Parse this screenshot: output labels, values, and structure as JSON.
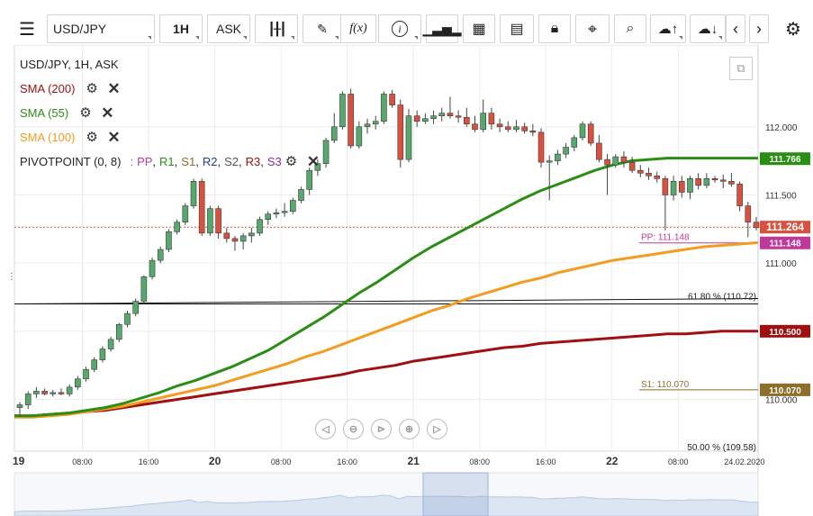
{
  "toolbar": {
    "symbol": "USD/JPY",
    "timeframe": "1H",
    "price_type": "ASK",
    "function_label": "f(x)",
    "info_label": "i"
  },
  "legend": {
    "title": "USD/JPY, 1H, ASK",
    "sma200": "SMA (200)",
    "sma55": "SMA (55)",
    "sma100": "SMA (100)",
    "pivot_name": "PIVOTPOINT (0, 8)",
    "pivot_sep": ":",
    "pivot_levels": [
      "PP",
      "R1",
      "S1",
      "R2",
      "S2",
      "R3",
      "S3"
    ],
    "pivot_commas": [
      ",",
      ",",
      ",",
      ",",
      ",",
      ","
    ]
  },
  "colors": {
    "up": "#56a86c",
    "down": "#d9503f",
    "sma200": "#a01010",
    "sma55": "#2a8e14",
    "sma100": "#f39c1f",
    "pp": "#c0399a",
    "r1": "#2a8e14",
    "s1": "#8d6e2b",
    "r2": "#1f3f9a",
    "s2": "#555555",
    "r3": "#a01010",
    "s3": "#8e2aa0",
    "current": "#d9503f"
  },
  "chart_data": {
    "type": "candlestick",
    "symbol": "USD/JPY",
    "timeframe": "1H",
    "yticks": [
      110.0,
      110.5,
      111.0,
      111.5,
      112.0
    ],
    "ylim": [
      109.62,
      112.6
    ],
    "xticks": [
      "19",
      "08:00",
      "16:00",
      "20",
      "08:00",
      "16:00",
      "21",
      "08:00",
      "16:00",
      "22",
      "08:00",
      "24.02.2020"
    ],
    "candles": [
      [
        109.94,
        109.98,
        109.87,
        109.96
      ],
      [
        109.96,
        110.06,
        109.93,
        110.04
      ],
      [
        110.04,
        110.09,
        110.01,
        110.06
      ],
      [
        110.06,
        110.08,
        110.03,
        110.04
      ],
      [
        110.04,
        110.07,
        110.02,
        110.05
      ],
      [
        110.05,
        110.08,
        110.03,
        110.04
      ],
      [
        110.04,
        110.11,
        110.02,
        110.09
      ],
      [
        110.09,
        110.17,
        110.07,
        110.15
      ],
      [
        110.15,
        110.24,
        110.13,
        110.22
      ],
      [
        110.22,
        110.31,
        110.2,
        110.29
      ],
      [
        110.29,
        110.39,
        110.27,
        110.37
      ],
      [
        110.37,
        110.46,
        110.35,
        110.44
      ],
      [
        110.44,
        110.56,
        110.42,
        110.55
      ],
      [
        110.55,
        110.65,
        110.53,
        110.63
      ],
      [
        110.63,
        110.74,
        110.61,
        110.72
      ],
      [
        110.72,
        110.91,
        110.7,
        110.9
      ],
      [
        110.9,
        111.04,
        110.88,
        111.02
      ],
      [
        111.02,
        111.12,
        111.0,
        111.1
      ],
      [
        111.1,
        111.25,
        111.08,
        111.23
      ],
      [
        111.23,
        111.32,
        111.21,
        111.3
      ],
      [
        111.3,
        111.44,
        111.28,
        111.42
      ],
      [
        111.42,
        111.62,
        111.4,
        111.6
      ],
      [
        111.6,
        111.62,
        111.2,
        111.22
      ],
      [
        111.22,
        111.42,
        111.2,
        111.4
      ],
      [
        111.4,
        111.42,
        111.18,
        111.22
      ],
      [
        111.22,
        111.26,
        111.15,
        111.18
      ],
      [
        111.18,
        111.2,
        111.09,
        111.16
      ],
      [
        111.16,
        111.22,
        111.1,
        111.2
      ],
      [
        111.2,
        111.26,
        111.15,
        111.22
      ],
      [
        111.22,
        111.34,
        111.2,
        111.32
      ],
      [
        111.32,
        111.38,
        111.28,
        111.36
      ],
      [
        111.36,
        111.4,
        111.33,
        111.37
      ],
      [
        111.37,
        111.44,
        111.34,
        111.38
      ],
      [
        111.38,
        111.48,
        111.36,
        111.46
      ],
      [
        111.46,
        111.56,
        111.44,
        111.54
      ],
      [
        111.54,
        111.7,
        111.5,
        111.68
      ],
      [
        111.68,
        111.76,
        111.64,
        111.73
      ],
      [
        111.73,
        111.92,
        111.7,
        111.9
      ],
      [
        111.9,
        112.1,
        111.88,
        112.0
      ],
      [
        112.0,
        112.26,
        111.98,
        112.24
      ],
      [
        112.24,
        112.28,
        111.84,
        111.86
      ],
      [
        111.86,
        112.04,
        111.84,
        112.0
      ],
      [
        112.0,
        112.06,
        111.95,
        112.02
      ],
      [
        112.02,
        112.08,
        111.98,
        112.04
      ],
      [
        112.04,
        112.26,
        112.02,
        112.24
      ],
      [
        112.24,
        112.27,
        112.14,
        112.16
      ],
      [
        112.16,
        112.2,
        111.7,
        111.76
      ],
      [
        111.76,
        112.13,
        111.74,
        112.08
      ],
      [
        112.08,
        112.12,
        112.0,
        112.04
      ],
      [
        112.04,
        112.1,
        112.02,
        112.06
      ],
      [
        112.06,
        112.12,
        112.02,
        112.08
      ],
      [
        112.08,
        112.14,
        112.04,
        112.1
      ],
      [
        112.1,
        112.22,
        112.06,
        112.08
      ],
      [
        112.08,
        112.12,
        112.03,
        112.07
      ],
      [
        112.07,
        112.14,
        112.0,
        112.02
      ],
      [
        112.02,
        112.08,
        111.96,
        111.98
      ],
      [
        111.98,
        112.2,
        111.96,
        112.1
      ],
      [
        112.1,
        112.14,
        111.98,
        112.02
      ],
      [
        112.02,
        112.06,
        111.96,
        112.0
      ],
      [
        112.0,
        112.04,
        111.96,
        111.98
      ],
      [
        111.98,
        112.05,
        111.96,
        112.0
      ],
      [
        112.0,
        112.03,
        111.95,
        111.97
      ],
      [
        111.97,
        112.02,
        111.93,
        111.96
      ],
      [
        111.96,
        111.99,
        111.7,
        111.74
      ],
      [
        111.74,
        111.79,
        111.46,
        111.75
      ],
      [
        111.75,
        111.83,
        111.72,
        111.8
      ],
      [
        111.8,
        111.88,
        111.77,
        111.85
      ],
      [
        111.85,
        111.94,
        111.82,
        111.92
      ],
      [
        111.92,
        112.04,
        111.9,
        112.02
      ],
      [
        112.02,
        112.04,
        111.86,
        111.88
      ],
      [
        111.88,
        111.94,
        111.74,
        111.76
      ],
      [
        111.76,
        111.8,
        111.5,
        111.72
      ],
      [
        111.72,
        111.8,
        111.7,
        111.78
      ],
      [
        111.78,
        111.82,
        111.7,
        111.74
      ],
      [
        111.74,
        111.78,
        111.66,
        111.68
      ],
      [
        111.68,
        111.72,
        111.63,
        111.66
      ],
      [
        111.66,
        111.7,
        111.61,
        111.64
      ],
      [
        111.64,
        111.67,
        111.59,
        111.62
      ],
      [
        111.62,
        111.64,
        111.24,
        111.5
      ],
      [
        111.5,
        111.64,
        111.46,
        111.6
      ],
      [
        111.6,
        111.64,
        111.48,
        111.52
      ],
      [
        111.52,
        111.64,
        111.47,
        111.62
      ],
      [
        111.62,
        111.66,
        111.54,
        111.57
      ],
      [
        111.57,
        111.66,
        111.55,
        111.62
      ],
      [
        111.62,
        111.64,
        111.59,
        111.61
      ],
      [
        111.61,
        111.65,
        111.55,
        111.6
      ],
      [
        111.6,
        111.66,
        111.56,
        111.58
      ],
      [
        111.58,
        111.6,
        111.38,
        111.42
      ],
      [
        111.42,
        111.45,
        111.19,
        111.3
      ],
      [
        111.3,
        111.34,
        111.24,
        111.26
      ]
    ],
    "sma55": [
      109.88,
      109.88,
      109.89,
      109.9,
      109.92,
      109.94,
      109.97,
      110.01,
      110.05,
      110.1,
      110.14,
      110.19,
      110.24,
      110.3,
      110.36,
      110.44,
      110.52,
      110.6,
      110.69,
      110.78,
      110.86,
      110.95,
      111.04,
      111.12,
      111.19,
      111.26,
      111.33,
      111.4,
      111.47,
      111.53,
      111.58,
      111.63,
      111.68,
      111.72,
      111.75,
      111.76,
      111.77,
      111.77,
      111.77,
      111.77,
      111.77,
      111.77
    ],
    "sma100": [
      109.87,
      109.87,
      109.88,
      109.89,
      109.91,
      109.93,
      109.95,
      109.98,
      110.01,
      110.04,
      110.07,
      110.1,
      110.14,
      110.18,
      110.22,
      110.26,
      110.31,
      110.35,
      110.4,
      110.45,
      110.5,
      110.55,
      110.6,
      110.65,
      110.69,
      110.74,
      110.78,
      110.82,
      110.86,
      110.89,
      110.93,
      110.96,
      110.99,
      111.02,
      111.04,
      111.06,
      111.08,
      111.1,
      111.12,
      111.13,
      111.14,
      111.15
    ],
    "sma200": [
      109.88,
      109.88,
      109.89,
      109.9,
      109.91,
      109.92,
      109.94,
      109.96,
      109.98,
      110.0,
      110.02,
      110.04,
      110.06,
      110.08,
      110.1,
      110.12,
      110.14,
      110.16,
      110.18,
      110.21,
      110.23,
      110.25,
      110.28,
      110.3,
      110.32,
      110.34,
      110.36,
      110.38,
      110.39,
      110.41,
      110.42,
      110.43,
      110.44,
      110.45,
      110.46,
      110.47,
      110.48,
      110.48,
      110.49,
      110.5,
      110.5,
      110.5
    ],
    "price_labels": [
      {
        "value": 111.766,
        "text": "111.766",
        "series": "sma55"
      },
      {
        "value": 111.264,
        "text": "111.264",
        "series": "current"
      },
      {
        "value": 111.148,
        "text": "111.148",
        "series": "pp"
      },
      {
        "value": 110.5,
        "text": "110.500",
        "series": "sma200"
      },
      {
        "value": 110.07,
        "text": "110.070",
        "series": "s1"
      }
    ],
    "level_texts": [
      {
        "value": 111.148,
        "text": "PP: 111.148",
        "series": "pp"
      },
      {
        "value": 110.07,
        "text": "S1: 110.070",
        "series": "s1"
      },
      {
        "value": 110.72,
        "text": "61.80 % (110.72)",
        "series": "fib"
      },
      {
        "value": 109.58,
        "text": "50.00 % (109.58)",
        "series": "fib"
      }
    ]
  }
}
